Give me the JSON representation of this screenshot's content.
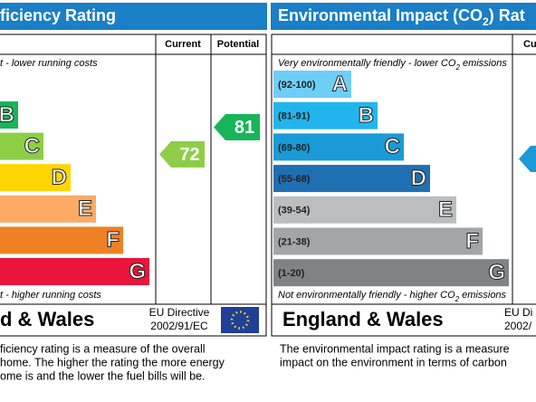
{
  "left_panel": {
    "title": "ficiency Rating",
    "columns": [
      "Current",
      "Potential"
    ],
    "top_note": "t - lower running costs",
    "bands": [
      {
        "letter": "B",
        "color": "#19b459"
      },
      {
        "letter": "C",
        "color": "#8dce46"
      },
      {
        "letter": "D",
        "color": "#ffd500"
      },
      {
        "letter": "E",
        "color": "#fcaa65"
      },
      {
        "letter": "F",
        "color": "#ef8023"
      },
      {
        "letter": "G",
        "color": "#e9153b"
      }
    ],
    "current": {
      "value": 72,
      "color": "#8dce46"
    },
    "potential": {
      "value": 81,
      "color": "#19b459"
    },
    "bottom_note": "t - higher running costs",
    "region": "d & Wales",
    "directive": [
      "EU Directive",
      "2002/91/EC"
    ],
    "description": [
      "ficiency rating is a measure of the overall",
      "home.  The higher the rating the more energy",
      "ome is and the lower the fuel bills will be."
    ]
  },
  "right_panel": {
    "title": [
      "Environmental Impact (CO",
      "2",
      ") Rat"
    ],
    "columns": [
      "Cu"
    ],
    "top_note": [
      "Very environmentally friendly - lower CO",
      "2",
      " emissions"
    ],
    "bands": [
      {
        "range": "(92-100)",
        "letter": "A",
        "color": "#6fcef5"
      },
      {
        "range": "(81-91)",
        "letter": "B",
        "color": "#22b5ed"
      },
      {
        "range": "(69-80)",
        "letter": "C",
        "color": "#1a9ad6"
      },
      {
        "range": "(55-68)",
        "letter": "D",
        "color": "#1f6fb3"
      },
      {
        "range": "(39-54)",
        "letter": "E",
        "color": "#bbbdbf"
      },
      {
        "range": "(21-38)",
        "letter": "F",
        "color": "#a3a5a8"
      },
      {
        "range": "(1-20)",
        "letter": "G",
        "color": "#808285"
      }
    ],
    "current_color": "#1a9ad6",
    "bottom_note": [
      "Not environmentally friendly - higher CO",
      "2",
      " emissions"
    ],
    "region": "England & Wales",
    "directive": [
      "EU Di",
      "2002/"
    ],
    "description": [
      "The environmental impact rating is a measure",
      "impact on the environment in terms of carbon"
    ]
  }
}
